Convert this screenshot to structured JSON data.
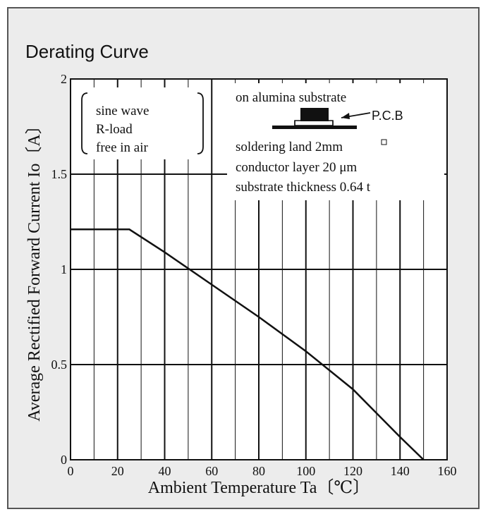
{
  "title": "Derating Curve",
  "chart_data": {
    "type": "line",
    "xlabel": "Ambient Temperature Ta〔℃〕",
    "ylabel": "Average Rectified Forward Current Io〔A〕",
    "xlim": [
      0,
      160
    ],
    "ylim": [
      0,
      2
    ],
    "x_ticks": [
      "0",
      "20",
      "40",
      "60",
      "80",
      "100",
      "120",
      "140",
      "160"
    ],
    "y_ticks": [
      "0",
      "0.5",
      "1",
      "1.5",
      "2"
    ],
    "grid": true,
    "series": [
      {
        "x": [
          0,
          25,
          40,
          60,
          80,
          100,
          120,
          140,
          150
        ],
        "y": [
          1.21,
          1.21,
          1.09,
          0.92,
          0.75,
          0.57,
          0.37,
          0.12,
          0
        ]
      }
    ],
    "annotations": {
      "conditions": [
        "sine wave",
        "R-load",
        "free in air"
      ],
      "substrate": "on alumina substrate",
      "pcb_label": "P.C.B",
      "details": [
        "soldering land 2mm",
        "conductor layer 20 μm",
        "substrate thickness 0.64 t"
      ]
    }
  },
  "colors": {
    "frame_bg": "#ececec",
    "plot_bg": "#ffffff",
    "line": "#111111",
    "border": "#555555"
  }
}
